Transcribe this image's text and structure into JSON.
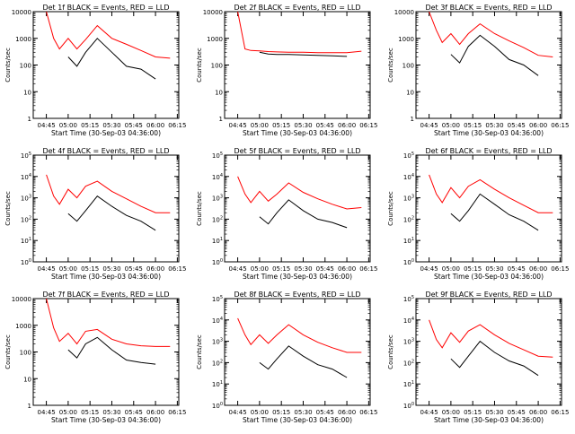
{
  "time_ticks": [
    "04:45",
    "05:00",
    "05:15",
    "05:30",
    "05:45",
    "06:00",
    "06:15"
  ],
  "xlabel": "Start Time (30-Sep-03 04:36:00)",
  "ylabel": "Counts/sec",
  "series_colors": {
    "events": "#000000",
    "lld": "#ff0000"
  },
  "chart_data": [
    {
      "type": "line",
      "title": "Det 1f BLACK = Events, RED = LLD",
      "xlabel": "Start Time (30-Sep-03 04:36:00)",
      "ylabel": "Counts/sec",
      "x_range": [
        "04:36",
        "06:16"
      ],
      "ylim": [
        1,
        10000
      ],
      "yscale": "log",
      "ytick_style": "plain",
      "x": [
        "04:45",
        "04:50",
        "04:54",
        "05:00",
        "05:06",
        "05:12",
        "05:20",
        "05:30",
        "05:40",
        "05:50",
        "06:00",
        "06:10"
      ],
      "series": [
        {
          "name": "Events",
          "values": [
            null,
            null,
            null,
            200,
            90,
            300,
            1000,
            300,
            90,
            70,
            30,
            null
          ]
        },
        {
          "name": "LLD",
          "values": [
            10000,
            1000,
            400,
            1000,
            400,
            900,
            3000,
            1000,
            600,
            350,
            200,
            180
          ]
        }
      ]
    },
    {
      "type": "line",
      "title": "Det 2f BLACK = Events, RED = LLD",
      "xlabel": "Start Time (30-Sep-03 04:36:00)",
      "ylabel": "Counts/sec",
      "x_range": [
        "04:36",
        "06:16"
      ],
      "ylim": [
        1,
        10000
      ],
      "yscale": "log",
      "ytick_style": "plain",
      "x": [
        "04:45",
        "04:50",
        "04:54",
        "05:00",
        "05:06",
        "05:12",
        "05:20",
        "05:30",
        "05:40",
        "05:50",
        "06:00",
        "06:10"
      ],
      "series": [
        {
          "name": "Events",
          "values": [
            null,
            null,
            null,
            300,
            260,
            250,
            250,
            240,
            230,
            220,
            210,
            null
          ]
        },
        {
          "name": "LLD",
          "values": [
            10000,
            400,
            350,
            340,
            320,
            310,
            300,
            300,
            290,
            290,
            290,
            330
          ]
        }
      ]
    },
    {
      "type": "line",
      "title": "Det 3f BLACK = Events, RED = LLD",
      "xlabel": "Start Time (30-Sep-03 04:36:00)",
      "ylabel": "Counts/sec",
      "x_range": [
        "04:36",
        "06:16"
      ],
      "ylim": [
        1,
        10000
      ],
      "yscale": "log",
      "ytick_style": "plain",
      "x": [
        "04:45",
        "04:50",
        "04:54",
        "05:00",
        "05:06",
        "05:12",
        "05:20",
        "05:30",
        "05:40",
        "05:50",
        "06:00",
        "06:10"
      ],
      "series": [
        {
          "name": "Events",
          "values": [
            null,
            null,
            null,
            250,
            120,
            500,
            1300,
            500,
            160,
            100,
            40,
            null
          ]
        },
        {
          "name": "LLD",
          "values": [
            10000,
            2000,
            700,
            1500,
            600,
            1500,
            3500,
            1500,
            800,
            450,
            230,
            200
          ]
        }
      ]
    },
    {
      "type": "line",
      "title": "Det 4f BLACK = Events, RED = LLD",
      "xlabel": "Start Time (30-Sep-03 04:36:00)",
      "ylabel": "Counts/sec",
      "x_range": [
        "04:36",
        "06:16"
      ],
      "ylim": [
        1,
        100000
      ],
      "yscale": "log",
      "ytick_style": "power",
      "x": [
        "04:45",
        "04:50",
        "04:54",
        "05:00",
        "05:06",
        "05:12",
        "05:20",
        "05:30",
        "05:40",
        "05:50",
        "06:00",
        "06:10"
      ],
      "series": [
        {
          "name": "Events",
          "values": [
            null,
            null,
            null,
            180,
            80,
            250,
            1200,
            400,
            150,
            80,
            30,
            null
          ]
        },
        {
          "name": "LLD",
          "values": [
            12000,
            1200,
            500,
            2500,
            1000,
            3500,
            6000,
            2000,
            900,
            400,
            200,
            200
          ]
        }
      ]
    },
    {
      "type": "line",
      "title": "Det 5f BLACK = Events, RED = LLD",
      "xlabel": "Start Time (30-Sep-03 04:36:00)",
      "ylabel": "Counts/sec",
      "x_range": [
        "04:36",
        "06:16"
      ],
      "ylim": [
        1,
        100000
      ],
      "yscale": "log",
      "ytick_style": "power",
      "x": [
        "04:45",
        "04:50",
        "04:54",
        "05:00",
        "05:06",
        "05:12",
        "05:20",
        "05:30",
        "05:40",
        "05:50",
        "06:00",
        "06:10"
      ],
      "series": [
        {
          "name": "Events",
          "values": [
            null,
            null,
            null,
            130,
            60,
            200,
            800,
            250,
            100,
            70,
            40,
            null
          ]
        },
        {
          "name": "LLD",
          "values": [
            10000,
            1500,
            600,
            2000,
            700,
            1500,
            5000,
            1800,
            900,
            500,
            300,
            350
          ]
        }
      ]
    },
    {
      "type": "line",
      "title": "Det 6f BLACK = Events, RED = LLD",
      "xlabel": "Start Time (30-Sep-03 04:36:00)",
      "ylabel": "Counts/sec",
      "x_range": [
        "04:36",
        "06:16"
      ],
      "ylim": [
        1,
        100000
      ],
      "yscale": "log",
      "ytick_style": "power",
      "x": [
        "04:45",
        "04:50",
        "04:54",
        "05:00",
        "05:06",
        "05:12",
        "05:20",
        "05:30",
        "05:40",
        "05:50",
        "06:00",
        "06:10"
      ],
      "series": [
        {
          "name": "Events",
          "values": [
            null,
            null,
            null,
            180,
            80,
            250,
            1500,
            500,
            160,
            80,
            30,
            null
          ]
        },
        {
          "name": "LLD",
          "values": [
            12000,
            1500,
            600,
            3000,
            1000,
            3500,
            7000,
            2500,
            1000,
            450,
            200,
            200
          ]
        }
      ]
    },
    {
      "type": "line",
      "title": "Det 7f BLACK = Events, RED = LLD",
      "xlabel": "Start Time (30-Sep-03 04:36:00)",
      "ylabel": "Counts/sec",
      "x_range": [
        "04:36",
        "06:16"
      ],
      "ylim": [
        1,
        10000
      ],
      "yscale": "log",
      "ytick_style": "plain",
      "x": [
        "04:45",
        "04:50",
        "04:54",
        "05:00",
        "05:06",
        "05:12",
        "05:20",
        "05:30",
        "05:40",
        "05:50",
        "06:00",
        "06:10"
      ],
      "series": [
        {
          "name": "Events",
          "values": [
            null,
            null,
            null,
            120,
            60,
            200,
            350,
            120,
            50,
            40,
            35,
            null
          ]
        },
        {
          "name": "LLD",
          "values": [
            10000,
            800,
            250,
            500,
            200,
            600,
            700,
            300,
            200,
            170,
            160,
            160
          ]
        }
      ]
    },
    {
      "type": "line",
      "title": "Det 8f BLACK = Events, RED = LLD",
      "xlabel": "Start Time (30-Sep-03 04:36:00)",
      "ylabel": "Counts/sec",
      "x_range": [
        "04:36",
        "06:16"
      ],
      "ylim": [
        1,
        100000
      ],
      "yscale": "log",
      "ytick_style": "power",
      "x": [
        "04:45",
        "04:50",
        "04:54",
        "05:00",
        "05:06",
        "05:12",
        "05:20",
        "05:30",
        "05:40",
        "05:50",
        "06:00",
        "06:10"
      ],
      "series": [
        {
          "name": "Events",
          "values": [
            null,
            null,
            null,
            100,
            50,
            150,
            600,
            200,
            80,
            50,
            20,
            null
          ]
        },
        {
          "name": "LLD",
          "values": [
            12000,
            2000,
            700,
            2000,
            800,
            2000,
            6000,
            2000,
            900,
            500,
            300,
            300
          ]
        }
      ]
    },
    {
      "type": "line",
      "title": "Det 9f BLACK = Events, RED = LLD",
      "xlabel": "Start Time (30-Sep-03 04:36:00)",
      "ylabel": "Counts/sec",
      "x_range": [
        "04:36",
        "06:16"
      ],
      "ylim": [
        1,
        100000
      ],
      "yscale": "log",
      "ytick_style": "power",
      "x": [
        "04:45",
        "04:50",
        "04:54",
        "05:00",
        "05:06",
        "05:12",
        "05:20",
        "05:30",
        "05:40",
        "05:50",
        "06:00",
        "06:10"
      ],
      "series": [
        {
          "name": "Events",
          "values": [
            null,
            null,
            null,
            150,
            60,
            200,
            1000,
            300,
            120,
            70,
            25,
            null
          ]
        },
        {
          "name": "LLD",
          "values": [
            10000,
            1200,
            500,
            2500,
            900,
            3000,
            6000,
            2000,
            800,
            400,
            200,
            180
          ]
        }
      ]
    }
  ]
}
